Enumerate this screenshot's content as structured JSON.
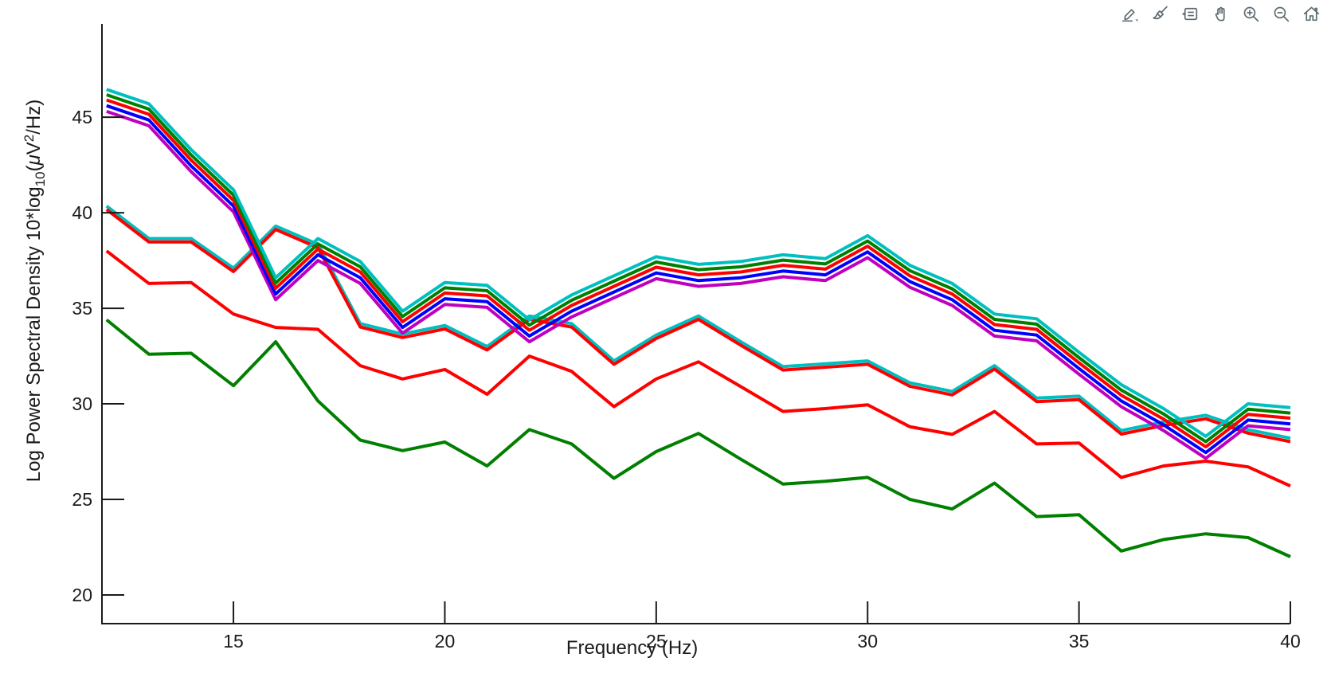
{
  "toolbar": {
    "icons": [
      {
        "name": "export-icon"
      },
      {
        "name": "brush-icon"
      },
      {
        "name": "datatips-icon"
      },
      {
        "name": "pan-icon"
      },
      {
        "name": "zoom-in-icon"
      },
      {
        "name": "zoom-out-icon"
      },
      {
        "name": "home-icon"
      }
    ]
  },
  "labels": {
    "xlabel": "Frequency (Hz)",
    "ylabel_p1": "Log Power Spectral Density 10*log",
    "ylabel_sub": "10",
    "ylabel_p2": "(",
    "ylabel_mu": "μ",
    "ylabel_p3": "V",
    "ylabel_sup": "2",
    "ylabel_p4": "/Hz)"
  },
  "chart_data": {
    "type": "line",
    "title": "",
    "xlabel": "Frequency (Hz)",
    "ylabel": "Log Power Spectral Density 10*log_10(μV^2/Hz)",
    "grid": false,
    "legend": null,
    "xlim": [
      11.89,
      40
    ],
    "ylim": [
      18.5,
      49.88
    ],
    "xticks": [
      15,
      20,
      25,
      30,
      35,
      40
    ],
    "yticks": [
      20,
      25,
      30,
      35,
      40,
      45
    ],
    "axis_color": "#1a1a1a",
    "x": [
      12,
      13,
      14,
      15,
      16,
      17,
      18,
      19,
      20,
      21,
      22,
      23,
      24,
      25,
      26,
      27,
      28,
      29,
      30,
      31,
      32,
      33,
      34,
      35,
      36,
      37,
      38,
      39,
      40
    ],
    "series": [
      {
        "name": "single-green",
        "color": "#007F00",
        "values": [
          34.4,
          32.6,
          32.65,
          30.95,
          33.25,
          30.15,
          28.1,
          27.55,
          28.0,
          26.75,
          28.65,
          27.9,
          26.1,
          27.5,
          28.45,
          27.1,
          25.8,
          25.95,
          26.15,
          25.0,
          24.5,
          25.85,
          24.1,
          24.2,
          22.3,
          22.9,
          23.2,
          23.0,
          22.0
        ]
      },
      {
        "name": "single-red",
        "color": "#FF0000",
        "values": [
          38.0,
          36.3,
          36.35,
          34.7,
          34.0,
          33.9,
          32.0,
          31.3,
          31.8,
          30.5,
          32.5,
          31.7,
          29.85,
          31.3,
          32.2,
          30.9,
          29.6,
          29.75,
          29.95,
          28.8,
          28.4,
          29.6,
          27.9,
          27.95,
          26.15,
          26.75,
          27.0,
          26.7,
          25.7
        ]
      },
      {
        "name": "pair-cyan",
        "color": "#00BFBF",
        "values": [
          40.35,
          38.65,
          38.65,
          37.1,
          39.3,
          38.35,
          34.2,
          33.65,
          34.1,
          33.0,
          34.6,
          34.2,
          32.25,
          33.6,
          34.6,
          33.25,
          31.95,
          32.1,
          32.25,
          31.1,
          30.65,
          32.0,
          30.3,
          30.4,
          28.6,
          29.05,
          29.4,
          28.65,
          28.2
        ]
      },
      {
        "name": "pair-red",
        "color": "#FF0000",
        "values": [
          40.17,
          38.47,
          38.47,
          36.92,
          39.12,
          38.17,
          34.02,
          33.47,
          33.92,
          32.82,
          34.42,
          34.02,
          32.07,
          33.42,
          34.42,
          33.07,
          31.77,
          31.92,
          32.07,
          30.92,
          30.47,
          31.82,
          30.12,
          30.22,
          28.42,
          28.87,
          29.22,
          28.47,
          28.02
        ]
      },
      {
        "name": "bundle-magenta",
        "color": "#BF00BF",
        "values": [
          45.3,
          44.55,
          42.15,
          40.05,
          35.45,
          37.5,
          36.3,
          33.7,
          35.2,
          35.05,
          33.25,
          34.55,
          35.55,
          36.55,
          36.15,
          36.3,
          36.65,
          36.45,
          37.65,
          36.1,
          35.15,
          33.55,
          33.3,
          31.55,
          29.85,
          28.6,
          27.15,
          28.85,
          28.65
        ]
      },
      {
        "name": "bundle-blue",
        "color": "#0000FF",
        "values": [
          45.6,
          44.85,
          42.45,
          40.35,
          35.75,
          37.8,
          36.6,
          34.0,
          35.5,
          35.35,
          33.55,
          34.85,
          35.85,
          36.85,
          36.45,
          36.6,
          36.95,
          36.75,
          37.95,
          36.4,
          35.45,
          33.85,
          33.6,
          31.85,
          30.15,
          28.9,
          27.45,
          29.15,
          28.95
        ]
      },
      {
        "name": "bundle-red",
        "color": "#FF0000",
        "values": [
          45.9,
          45.15,
          42.75,
          40.65,
          36.05,
          38.1,
          36.9,
          34.3,
          35.8,
          35.65,
          33.85,
          35.15,
          36.15,
          37.15,
          36.75,
          36.9,
          37.25,
          37.05,
          38.25,
          36.7,
          35.75,
          34.15,
          33.9,
          32.15,
          30.45,
          29.2,
          27.75,
          29.45,
          29.25
        ]
      },
      {
        "name": "bundle-green",
        "color": "#007F00",
        "values": [
          46.17,
          45.42,
          43.02,
          40.92,
          36.32,
          38.37,
          37.17,
          34.57,
          36.07,
          35.92,
          34.12,
          35.42,
          36.42,
          37.42,
          37.02,
          37.17,
          37.52,
          37.32,
          38.52,
          36.97,
          36.02,
          34.42,
          34.17,
          32.42,
          30.72,
          29.47,
          28.02,
          29.72,
          29.52
        ]
      },
      {
        "name": "bundle-cyan",
        "color": "#00BFBF",
        "values": [
          46.45,
          45.7,
          43.3,
          41.2,
          36.6,
          38.65,
          37.45,
          34.85,
          36.35,
          36.2,
          34.4,
          35.7,
          36.7,
          37.7,
          37.3,
          37.45,
          37.8,
          37.6,
          38.8,
          37.25,
          36.3,
          34.7,
          34.45,
          32.7,
          31.0,
          29.75,
          28.3,
          30.0,
          29.8
        ]
      }
    ]
  }
}
